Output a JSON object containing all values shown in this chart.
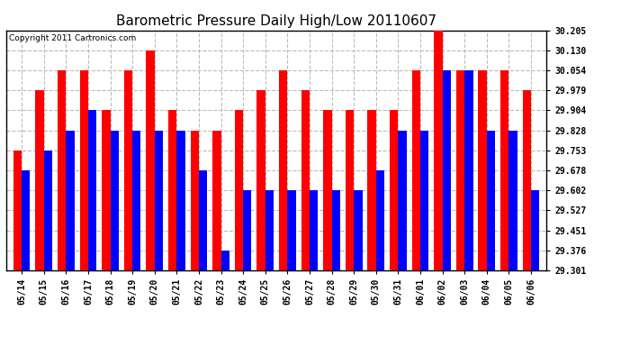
{
  "title": "Barometric Pressure Daily High/Low 20110607",
  "copyright": "Copyright 2011 Cartronics.com",
  "dates": [
    "05/14",
    "05/15",
    "05/16",
    "05/17",
    "05/18",
    "05/19",
    "05/20",
    "05/21",
    "05/22",
    "05/23",
    "05/24",
    "05/25",
    "05/26",
    "05/27",
    "05/28",
    "05/29",
    "05/30",
    "05/31",
    "06/01",
    "06/02",
    "06/03",
    "06/04",
    "06/05",
    "06/06"
  ],
  "highs": [
    29.753,
    29.979,
    30.054,
    30.054,
    29.904,
    30.054,
    30.13,
    29.904,
    29.828,
    29.828,
    29.904,
    29.979,
    30.054,
    29.979,
    29.904,
    29.904,
    29.904,
    29.904,
    30.054,
    30.205,
    30.054,
    30.054,
    30.054,
    29.979
  ],
  "lows": [
    29.678,
    29.753,
    29.828,
    29.904,
    29.828,
    29.828,
    29.828,
    29.828,
    29.678,
    29.376,
    29.602,
    29.602,
    29.602,
    29.602,
    29.602,
    29.602,
    29.678,
    29.828,
    29.828,
    30.054,
    30.054,
    29.828,
    29.828,
    29.602
  ],
  "ymin": 29.301,
  "ymax": 30.205,
  "yticks": [
    29.301,
    29.376,
    29.451,
    29.527,
    29.602,
    29.678,
    29.753,
    29.828,
    29.904,
    29.979,
    30.054,
    30.13,
    30.205
  ],
  "bar_width": 0.38,
  "high_color": "#ff0000",
  "low_color": "#0000ff",
  "bg_color": "#ffffff",
  "grid_color": "#bbbbbb",
  "title_fontsize": 11,
  "tick_fontsize": 7,
  "copyright_fontsize": 6.5
}
